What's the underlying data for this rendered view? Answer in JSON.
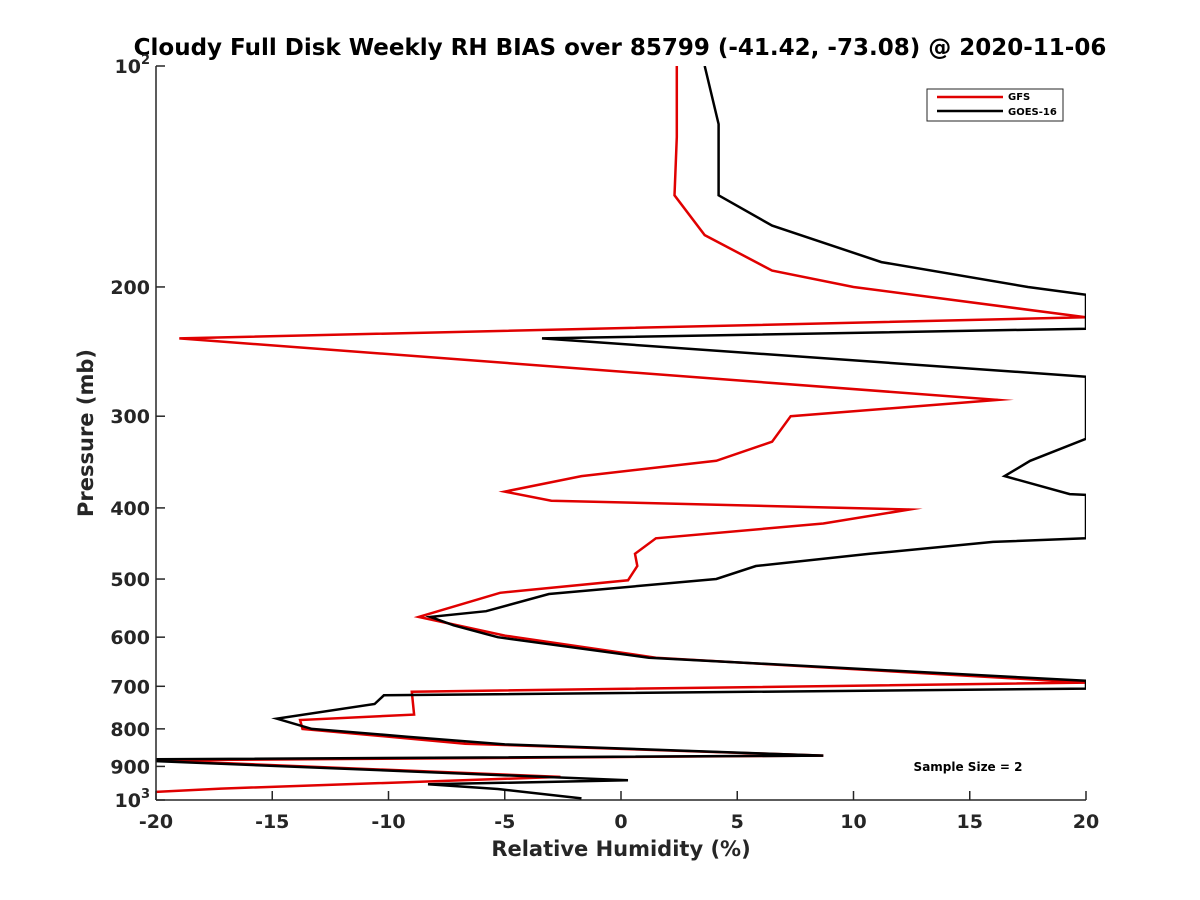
{
  "chart_data": {
    "type": "line",
    "title": "Cloudy Full Disk Weekly RH BIAS over 85799 (-41.42, -73.08) @ 2020-11-06",
    "xlabel": "Relative Humidity (%)",
    "ylabel": "Pressure (mb)",
    "xlim": [
      -20,
      20
    ],
    "ylim": [
      100,
      1000
    ],
    "yscale": "log",
    "y_reversed": true,
    "grid": false,
    "legend_position": "top-right",
    "x_ticks": [
      -20,
      -15,
      -10,
      -5,
      0,
      5,
      10,
      15,
      20
    ],
    "x_tick_labels": [
      "-20",
      "-15",
      "-10",
      "-5",
      "0",
      "5",
      "10",
      "15",
      "20"
    ],
    "y_ticks": [
      {
        "value": 100,
        "base": "10",
        "exp": "2"
      },
      {
        "value": 200,
        "label": "200"
      },
      {
        "value": 300,
        "label": "300"
      },
      {
        "value": 400,
        "label": "400"
      },
      {
        "value": 500,
        "label": "500"
      },
      {
        "value": 600,
        "label": "600"
      },
      {
        "value": 700,
        "label": "700"
      },
      {
        "value": 800,
        "label": "800"
      },
      {
        "value": 900,
        "label": "900"
      },
      {
        "value": 1000,
        "base": "10",
        "exp": "3"
      }
    ],
    "annotation": "Sample Size = 2",
    "series": [
      {
        "name": "GFS",
        "color": "#e00000",
        "points": [
          [
            2.4,
            100
          ],
          [
            2.4,
            125
          ],
          [
            2.3,
            150
          ],
          [
            3.6,
            170
          ],
          [
            6.5,
            190
          ],
          [
            10,
            200
          ],
          [
            20,
            220
          ],
          [
            -19,
            235
          ],
          [
            16.2,
            285
          ],
          [
            7.3,
            300
          ],
          [
            6.5,
            325
          ],
          [
            4.1,
            345
          ],
          [
            -1.7,
            362
          ],
          [
            -5,
            380
          ],
          [
            -3,
            391
          ],
          [
            12.4,
            402
          ],
          [
            8.7,
            420
          ],
          [
            1.5,
            440
          ],
          [
            0.6,
            462
          ],
          [
            0.7,
            480
          ],
          [
            0.3,
            502
          ],
          [
            -5.2,
            522
          ],
          [
            -8.7,
            563
          ],
          [
            -5,
            597
          ],
          [
            1.5,
            640
          ],
          [
            20,
            692
          ],
          [
            -9,
            712
          ],
          [
            -8.9,
            765
          ],
          [
            -13.8,
            778
          ],
          [
            -13.7,
            800
          ],
          [
            -6.7,
            838
          ],
          [
            8.7,
            870
          ],
          [
            -20,
            883
          ],
          [
            -2.6,
            930
          ],
          [
            -17.2,
            965
          ],
          [
            -20,
            975
          ]
        ]
      },
      {
        "name": "GOES-16",
        "color": "#000000",
        "points": [
          [
            3.6,
            100
          ],
          [
            4.2,
            120
          ],
          [
            4.2,
            150
          ],
          [
            6.5,
            165
          ],
          [
            11.2,
            185
          ],
          [
            17.5,
            200
          ],
          [
            20,
            205
          ],
          [
            20,
            228
          ],
          [
            -3.4,
            235
          ],
          [
            20,
            265
          ],
          [
            20,
            322
          ],
          [
            17.6,
            345
          ],
          [
            16.5,
            362
          ],
          [
            19.3,
            383
          ],
          [
            20,
            384
          ],
          [
            20,
            440
          ],
          [
            16,
            445
          ],
          [
            10.7,
            462
          ],
          [
            5.8,
            480
          ],
          [
            4.1,
            500
          ],
          [
            -3.1,
            524
          ],
          [
            -5.8,
            553
          ],
          [
            -8.2,
            563
          ],
          [
            -7.2,
            578
          ],
          [
            -5.3,
            600
          ],
          [
            1.2,
            640
          ],
          [
            20,
            688
          ],
          [
            20,
            705
          ],
          [
            -10.2,
            720
          ],
          [
            -10.6,
            740
          ],
          [
            -14.8,
            775
          ],
          [
            -13.3,
            800
          ],
          [
            -9.2,
            820
          ],
          [
            -5,
            840
          ],
          [
            8.7,
            870
          ],
          [
            -20,
            880
          ],
          [
            -20,
            885
          ],
          [
            0.3,
            940
          ],
          [
            -8.3,
            952
          ],
          [
            -5.3,
            966
          ],
          [
            -1.7,
            995
          ]
        ]
      }
    ]
  }
}
